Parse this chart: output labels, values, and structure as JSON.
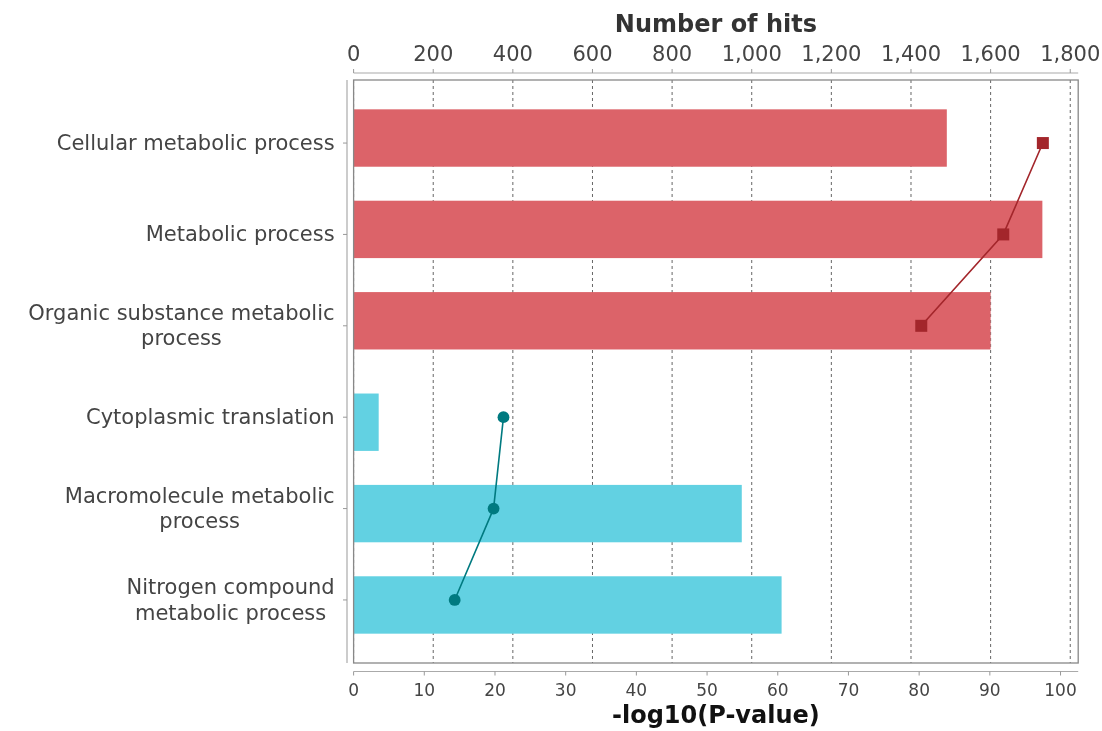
{
  "chart_data": {
    "type": "bar",
    "orientation": "horizontal",
    "xlabel": "-log10(P-value)",
    "x2label": "Number of hits",
    "categories": [
      "Cellular metabolic process",
      "Metabolic process",
      "Organic substance metabolic process",
      "Cytoplasmic translation",
      "Macromolecule metabolic process",
      "Nitrogen compound metabolic process"
    ],
    "series": [
      {
        "axis": "x2",
        "color": "#dc6369",
        "values": [
          1490,
          1730,
          1600,
          null,
          null,
          null
        ]
      },
      {
        "axis": "x2",
        "color": "#62d1e2",
        "values": [
          null,
          null,
          null,
          63,
          975,
          1075
        ]
      },
      {
        "type": "line",
        "color": "#a3262b",
        "marker": "square",
        "values": [
          97.5,
          91.9,
          80.3,
          null,
          null,
          null
        ]
      },
      {
        "type": "line",
        "color": "#007a80",
        "marker": "circle",
        "values": [
          null,
          null,
          null,
          21.2,
          19.8,
          14.3
        ]
      }
    ],
    "xlim": [
      0,
      102.5
    ],
    "xticks": [
      0,
      10,
      20,
      30,
      40,
      50,
      60,
      70,
      80,
      90,
      100
    ],
    "x2lim": [
      0,
      1820
    ],
    "x2ticks": [
      0,
      200,
      400,
      600,
      800,
      {
        "value": 1000,
        "label": "1,000"
      },
      {
        "value": 1200,
        "label": "1,200"
      },
      {
        "value": 1400,
        "label": "1,400"
      },
      {
        "value": 1600,
        "label": "1,600"
      },
      {
        "value": 1800,
        "label": "1,800"
      }
    ],
    "grid": "x2"
  }
}
